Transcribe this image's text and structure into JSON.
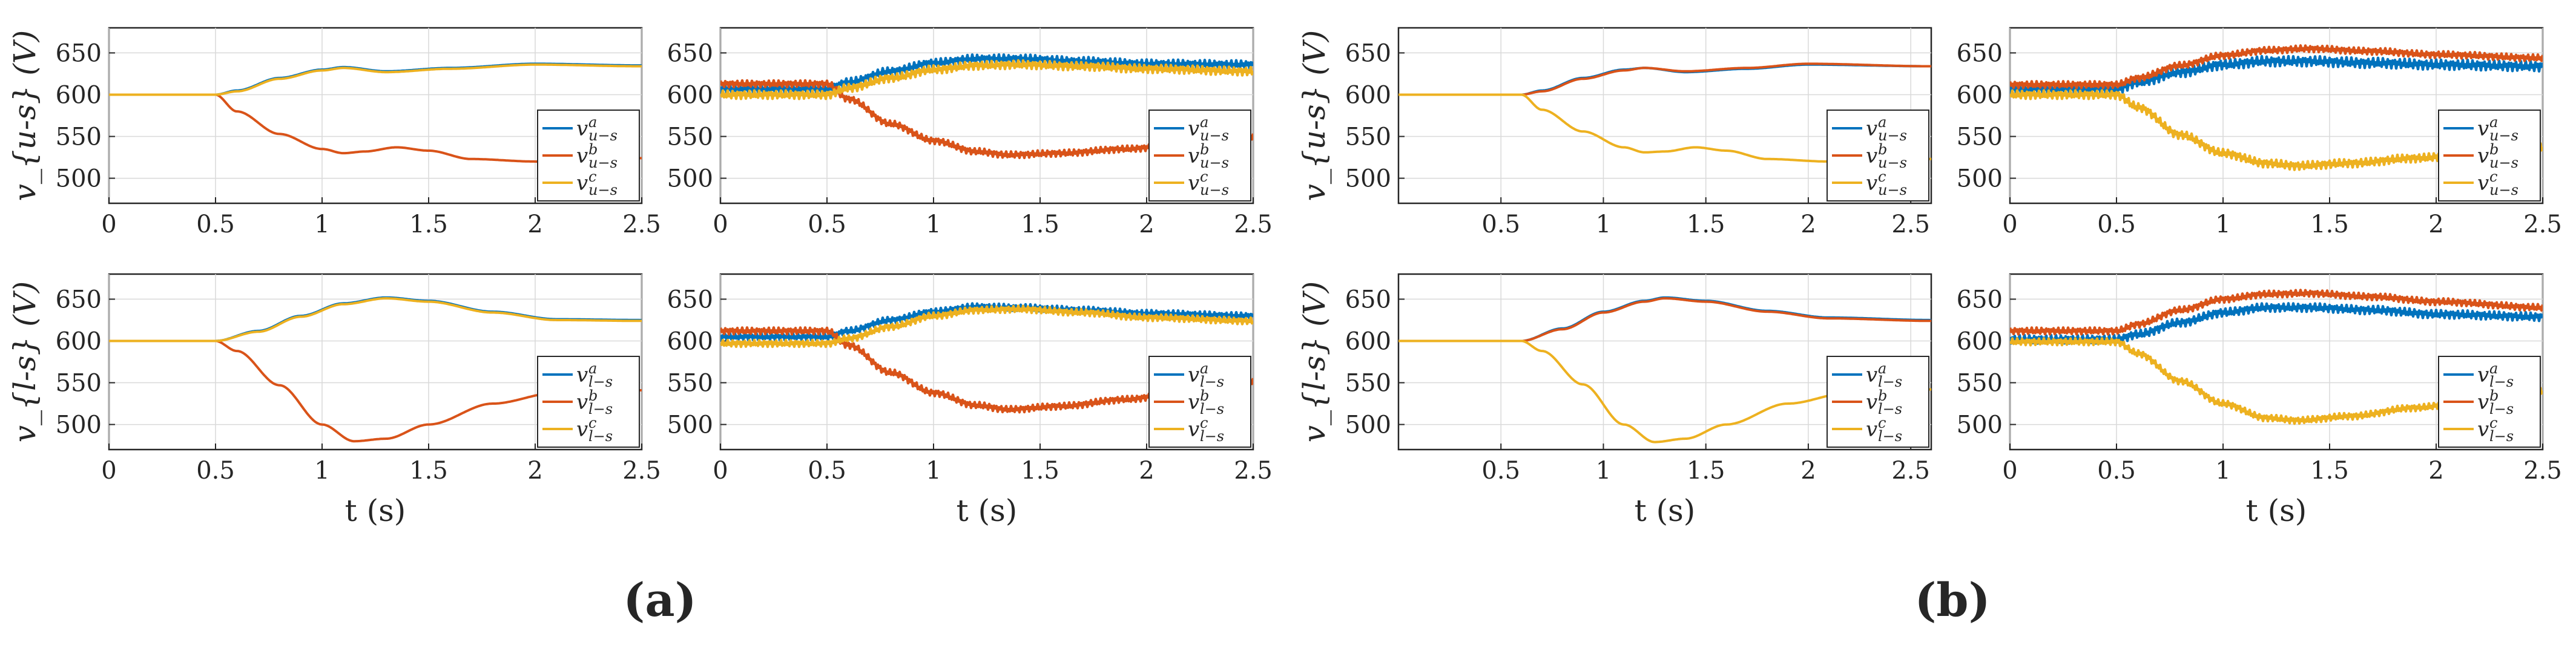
{
  "figure": {
    "subfigure_labels": [
      "(a)",
      "(b)"
    ]
  },
  "chart_data": [
    {
      "id": "a-upper-left",
      "type": "line",
      "xlabel": "",
      "ylabel": "v_{u-s} (V)",
      "xlim": [
        0,
        2.5
      ],
      "ylim": [
        470,
        680
      ],
      "xticks": [
        "0",
        "0.5",
        "1",
        "1.5",
        "2",
        "2.5"
      ],
      "yticks": [
        "500",
        "550",
        "600",
        "650"
      ],
      "legend_position": "bottom-right",
      "series": [
        {
          "name": "v^a_{u-s}",
          "base": "v",
          "sup": "a",
          "sub": "u−s",
          "color": "#0072BD",
          "noise": 0.5,
          "x": [
            0,
            0.5,
            0.6,
            0.8,
            1.0,
            1.1,
            1.3,
            1.6,
            2.0,
            2.5
          ],
          "y": [
            600,
            600,
            605,
            620,
            630,
            633,
            628,
            632,
            637,
            635
          ]
        },
        {
          "name": "v^b_{u-s}",
          "base": "v",
          "sup": "b",
          "sub": "u−s",
          "color": "#D95319",
          "noise": 0.5,
          "x": [
            0,
            0.5,
            0.6,
            0.8,
            1.0,
            1.1,
            1.2,
            1.35,
            1.5,
            1.7,
            2.0,
            2.5
          ],
          "y": [
            600,
            600,
            580,
            553,
            535,
            530,
            532,
            537,
            533,
            523,
            520,
            524
          ]
        },
        {
          "name": "v^c_{u-s}",
          "base": "v",
          "sup": "c",
          "sub": "u−s",
          "color": "#EDB120",
          "noise": 0.5,
          "x": [
            0,
            0.5,
            0.6,
            0.8,
            1.0,
            1.1,
            1.3,
            1.6,
            2.0,
            2.5
          ],
          "y": [
            600,
            600,
            604,
            619,
            629,
            632,
            627,
            631,
            636,
            634
          ]
        }
      ]
    },
    {
      "id": "a-upper-right",
      "type": "line",
      "xlabel": "",
      "ylabel": "",
      "xlim": [
        0,
        2.5
      ],
      "ylim": [
        470,
        680
      ],
      "xticks": [
        "0",
        "0.5",
        "1",
        "1.5",
        "2",
        "2.5"
      ],
      "yticks": [
        "500",
        "550",
        "600",
        "650"
      ],
      "legend_position": "bottom-right",
      "series": [
        {
          "name": "v^a_{u-s}",
          "base": "v",
          "sup": "a",
          "sub": "u−s",
          "color": "#0072BD",
          "noise": 5,
          "x": [
            0,
            0.5,
            0.6,
            0.8,
            1.0,
            1.2,
            1.4,
            1.7,
            2.0,
            2.5
          ],
          "y": [
            607,
            607,
            615,
            628,
            638,
            643,
            643,
            640,
            637,
            636
          ]
        },
        {
          "name": "v^b_{u-s}",
          "base": "v",
          "sup": "b",
          "sub": "u−s",
          "color": "#D95319",
          "noise": 4,
          "x": [
            0,
            0.5,
            0.6,
            0.8,
            1.0,
            1.2,
            1.35,
            1.6,
            1.9,
            2.2,
            2.5
          ],
          "y": [
            613,
            613,
            595,
            565,
            545,
            532,
            528,
            530,
            535,
            542,
            550
          ]
        },
        {
          "name": "v^c_{u-s}",
          "base": "v",
          "sup": "c",
          "sub": "u−s",
          "color": "#EDB120",
          "noise": 5,
          "x": [
            0,
            0.5,
            0.6,
            0.8,
            1.0,
            1.2,
            1.4,
            1.7,
            2.0,
            2.5
          ],
          "y": [
            600,
            600,
            608,
            620,
            630,
            635,
            636,
            634,
            631,
            628
          ]
        }
      ]
    },
    {
      "id": "a-lower-left",
      "type": "line",
      "xlabel": "t (s)",
      "ylabel": "v_{l-s} (V)",
      "xlim": [
        0,
        2.5
      ],
      "ylim": [
        470,
        680
      ],
      "xticks": [
        "0",
        "0.5",
        "1",
        "1.5",
        "2",
        "2.5"
      ],
      "yticks": [
        "500",
        "550",
        "600",
        "650"
      ],
      "legend_position": "bottom-right",
      "series": [
        {
          "name": "v^a_{l-s}",
          "base": "v",
          "sup": "a",
          "sub": "l−s",
          "color": "#0072BD",
          "noise": 0.5,
          "x": [
            0,
            0.5,
            0.7,
            0.9,
            1.1,
            1.3,
            1.5,
            1.8,
            2.1,
            2.5
          ],
          "y": [
            600,
            600,
            612,
            630,
            645,
            652,
            648,
            635,
            626,
            625
          ]
        },
        {
          "name": "v^b_{l-s}",
          "base": "v",
          "sup": "b",
          "sub": "l−s",
          "color": "#D95319",
          "noise": 0.5,
          "x": [
            0,
            0.5,
            0.6,
            0.8,
            1.0,
            1.15,
            1.3,
            1.5,
            1.8,
            2.1,
            2.5
          ],
          "y": [
            600,
            600,
            588,
            547,
            500,
            480,
            483,
            500,
            525,
            538,
            541
          ]
        },
        {
          "name": "v^c_{l-s}",
          "base": "v",
          "sup": "c",
          "sub": "l−s",
          "color": "#EDB120",
          "noise": 0.5,
          "x": [
            0,
            0.5,
            0.7,
            0.9,
            1.1,
            1.3,
            1.5,
            1.8,
            2.1,
            2.5
          ],
          "y": [
            600,
            600,
            611,
            629,
            644,
            651,
            647,
            634,
            625,
            624
          ]
        }
      ]
    },
    {
      "id": "a-lower-right",
      "type": "line",
      "xlabel": "t (s)",
      "ylabel": "",
      "xlim": [
        0,
        2.5
      ],
      "ylim": [
        470,
        680
      ],
      "xticks": [
        "0",
        "0.5",
        "1",
        "1.5",
        "2",
        "2.5"
      ],
      "yticks": [
        "500",
        "550",
        "600",
        "650"
      ],
      "legend_position": "bottom-right",
      "series": [
        {
          "name": "v^a_{l-s}",
          "base": "v",
          "sup": "a",
          "sub": "l−s",
          "color": "#0072BD",
          "noise": 4,
          "x": [
            0,
            0.5,
            0.6,
            0.8,
            1.0,
            1.2,
            1.4,
            1.7,
            2.0,
            2.5
          ],
          "y": [
            605,
            605,
            612,
            625,
            635,
            641,
            640,
            637,
            633,
            630
          ]
        },
        {
          "name": "v^b_{l-s}",
          "base": "v",
          "sup": "b",
          "sub": "l−s",
          "color": "#D95319",
          "noise": 4,
          "x": [
            0,
            0.5,
            0.6,
            0.8,
            1.0,
            1.2,
            1.35,
            1.6,
            1.9,
            2.2,
            2.5
          ],
          "y": [
            612,
            612,
            595,
            562,
            538,
            523,
            518,
            522,
            530,
            541,
            552
          ]
        },
        {
          "name": "v^c_{l-s}",
          "base": "v",
          "sup": "c",
          "sub": "l−s",
          "color": "#EDB120",
          "noise": 4,
          "x": [
            0,
            0.5,
            0.6,
            0.8,
            1.0,
            1.2,
            1.4,
            1.7,
            2.0,
            2.5
          ],
          "y": [
            597,
            597,
            603,
            617,
            630,
            637,
            638,
            634,
            628,
            624
          ]
        }
      ]
    },
    {
      "id": "b-upper-left",
      "type": "line",
      "xlabel": "",
      "ylabel": "v_{u-s} (V)",
      "xlim": [
        0,
        2.6
      ],
      "ylim": [
        470,
        680
      ],
      "xticks": [
        "0.5",
        "1",
        "1.5",
        "2",
        "2.5"
      ],
      "yticks": [
        "500",
        "550",
        "600",
        "650"
      ],
      "legend_position": "bottom-right",
      "series": [
        {
          "name": "v^a_{u-s}",
          "base": "v",
          "sup": "a",
          "sub": "u−s",
          "color": "#0072BD",
          "noise": 0.5,
          "x": [
            0,
            0.6,
            0.7,
            0.9,
            1.1,
            1.2,
            1.4,
            1.7,
            2.0,
            2.6
          ],
          "y": [
            600,
            600,
            605,
            620,
            630,
            632,
            627,
            631,
            636,
            634
          ]
        },
        {
          "name": "v^b_{u-s}",
          "base": "v",
          "sup": "b",
          "sub": "u−s",
          "color": "#D95319",
          "noise": 0.5,
          "x": [
            0,
            0.6,
            0.7,
            0.9,
            1.1,
            1.2,
            1.4,
            1.7,
            2.0,
            2.6
          ],
          "y": [
            600,
            600,
            604,
            619,
            629,
            632,
            628,
            632,
            637,
            634
          ]
        },
        {
          "name": "v^c_{u-s}",
          "base": "v",
          "sup": "c",
          "sub": "u−s",
          "color": "#EDB120",
          "noise": 0.5,
          "x": [
            0,
            0.6,
            0.7,
            0.9,
            1.1,
            1.2,
            1.3,
            1.45,
            1.6,
            1.8,
            2.1,
            2.6
          ],
          "y": [
            600,
            600,
            582,
            556,
            537,
            531,
            532,
            537,
            533,
            523,
            520,
            523
          ]
        }
      ]
    },
    {
      "id": "b-upper-right",
      "type": "line",
      "xlabel": "",
      "ylabel": "",
      "xlim": [
        0,
        2.5
      ],
      "ylim": [
        470,
        680
      ],
      "xticks": [
        "0",
        "0.5",
        "1",
        "1.5",
        "2",
        "2.5"
      ],
      "yticks": [
        "500",
        "550",
        "600",
        "650"
      ],
      "legend_position": "bottom-right",
      "series": [
        {
          "name": "v^a_{u-s}",
          "base": "v",
          "sup": "a",
          "sub": "u−s",
          "color": "#0072BD",
          "noise": 6,
          "x": [
            0,
            0.5,
            0.6,
            0.8,
            1.0,
            1.2,
            1.4,
            1.7,
            2.0,
            2.5
          ],
          "y": [
            607,
            607,
            615,
            627,
            636,
            640,
            640,
            638,
            636,
            634
          ]
        },
        {
          "name": "v^b_{u-s}",
          "base": "v",
          "sup": "b",
          "sub": "u−s",
          "color": "#D95319",
          "noise": 4,
          "x": [
            0,
            0.5,
            0.6,
            0.8,
            1.0,
            1.2,
            1.4,
            1.7,
            2.0,
            2.5
          ],
          "y": [
            612,
            612,
            620,
            635,
            647,
            653,
            655,
            652,
            648,
            644
          ]
        },
        {
          "name": "v^c_{u-s}",
          "base": "v",
          "sup": "c",
          "sub": "u−s",
          "color": "#EDB120",
          "noise": 5,
          "x": [
            0,
            0.5,
            0.6,
            0.8,
            1.0,
            1.2,
            1.35,
            1.6,
            1.9,
            2.2,
            2.5
          ],
          "y": [
            600,
            600,
            585,
            552,
            530,
            518,
            515,
            518,
            524,
            530,
            537
          ]
        }
      ]
    },
    {
      "id": "b-lower-left",
      "type": "line",
      "xlabel": "t (s)",
      "ylabel": "v_{l-s} (V)",
      "xlim": [
        0,
        2.6
      ],
      "ylim": [
        470,
        680
      ],
      "xticks": [
        "0.5",
        "1",
        "1.5",
        "2",
        "2.5"
      ],
      "yticks": [
        "500",
        "550",
        "600",
        "650"
      ],
      "legend_position": "bottom-right",
      "series": [
        {
          "name": "v^a_{l-s}",
          "base": "v",
          "sup": "a",
          "sub": "l−s",
          "color": "#0072BD",
          "noise": 0.5,
          "x": [
            0,
            0.6,
            0.8,
            1.0,
            1.2,
            1.3,
            1.5,
            1.8,
            2.1,
            2.6
          ],
          "y": [
            600,
            600,
            615,
            635,
            648,
            652,
            648,
            636,
            628,
            625
          ]
        },
        {
          "name": "v^b_{l-s}",
          "base": "v",
          "sup": "b",
          "sub": "l−s",
          "color": "#D95319",
          "noise": 0.5,
          "x": [
            0,
            0.6,
            0.8,
            1.0,
            1.2,
            1.3,
            1.5,
            1.8,
            2.1,
            2.6
          ],
          "y": [
            600,
            600,
            614,
            634,
            647,
            651,
            647,
            635,
            627,
            624
          ]
        },
        {
          "name": "v^c_{l-s}",
          "base": "v",
          "sup": "c",
          "sub": "l−s",
          "color": "#EDB120",
          "noise": 0.5,
          "x": [
            0,
            0.6,
            0.7,
            0.9,
            1.1,
            1.25,
            1.4,
            1.6,
            1.9,
            2.2,
            2.6
          ],
          "y": [
            600,
            600,
            588,
            548,
            500,
            479,
            483,
            500,
            525,
            538,
            542
          ]
        }
      ]
    },
    {
      "id": "b-lower-right",
      "type": "line",
      "xlabel": "t (s)",
      "ylabel": "",
      "xlim": [
        0,
        2.5
      ],
      "ylim": [
        470,
        680
      ],
      "xticks": [
        "0",
        "0.5",
        "1",
        "1.5",
        "2",
        "2.5"
      ],
      "yticks": [
        "500",
        "550",
        "600",
        "650"
      ],
      "legend_position": "bottom-right",
      "series": [
        {
          "name": "v^a_{l-s}",
          "base": "v",
          "sup": "a",
          "sub": "l−s",
          "color": "#0072BD",
          "noise": 5,
          "x": [
            0,
            0.5,
            0.6,
            0.8,
            1.0,
            1.2,
            1.4,
            1.7,
            2.0,
            2.5
          ],
          "y": [
            602,
            602,
            608,
            622,
            634,
            640,
            640,
            637,
            632,
            629
          ]
        },
        {
          "name": "v^b_{l-s}",
          "base": "v",
          "sup": "b",
          "sub": "l−s",
          "color": "#D95319",
          "noise": 4,
          "x": [
            0,
            0.5,
            0.6,
            0.8,
            1.0,
            1.2,
            1.4,
            1.7,
            2.0,
            2.5
          ],
          "y": [
            612,
            612,
            620,
            637,
            650,
            656,
            657,
            653,
            647,
            640
          ]
        },
        {
          "name": "v^c_{l-s}",
          "base": "v",
          "sup": "c",
          "sub": "l−s",
          "color": "#EDB120",
          "noise": 4,
          "x": [
            0,
            0.5,
            0.6,
            0.8,
            1.0,
            1.2,
            1.35,
            1.6,
            1.9,
            2.2,
            2.5
          ],
          "y": [
            599,
            599,
            585,
            552,
            525,
            508,
            505,
            510,
            520,
            530,
            540
          ]
        }
      ]
    }
  ]
}
